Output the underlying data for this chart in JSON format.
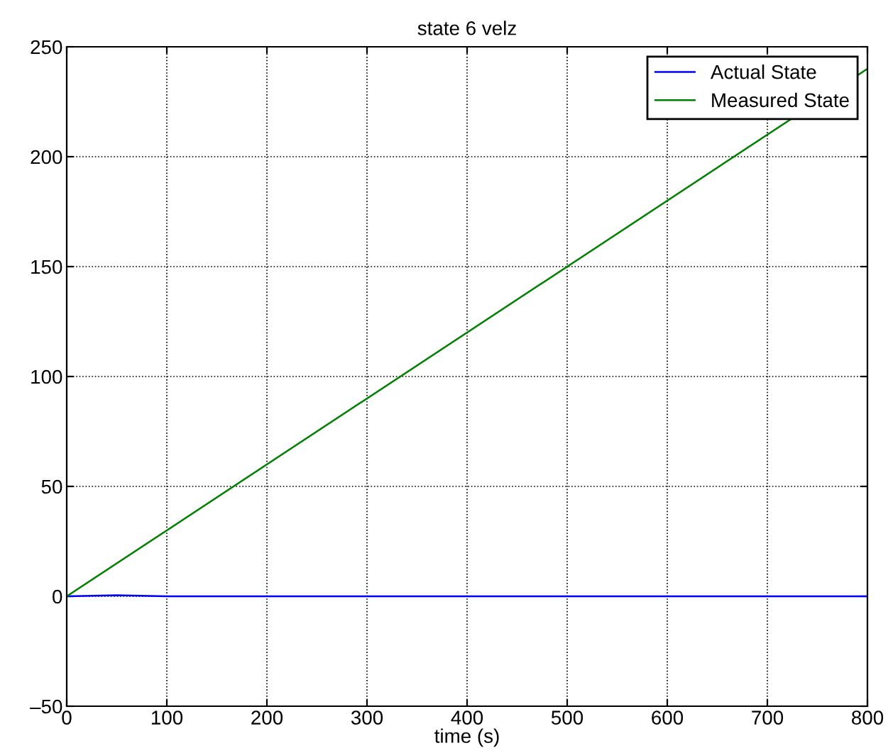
{
  "chart_data": {
    "type": "line",
    "title": "state 6 velz",
    "xlabel": "time (s)",
    "series": [
      {
        "name": "Actual State",
        "color": "#0000ff",
        "x": [
          0,
          50,
          100,
          800
        ],
        "values": [
          0,
          0.5,
          0,
          0
        ]
      },
      {
        "name": "Measured State",
        "color": "#008000",
        "x": [
          0,
          800
        ],
        "values": [
          0,
          240
        ]
      }
    ],
    "xlim": [
      0,
      800
    ],
    "xticks": [
      0,
      100,
      200,
      300,
      400,
      500,
      600,
      700,
      800
    ],
    "ylim": [
      -50,
      250
    ],
    "yticks": [
      {
        "value": -50,
        "label": "–50"
      },
      0,
      50,
      100,
      150,
      200,
      250
    ],
    "grid": true,
    "legend": "top right",
    "line_style": "solid",
    "marker": "none"
  }
}
